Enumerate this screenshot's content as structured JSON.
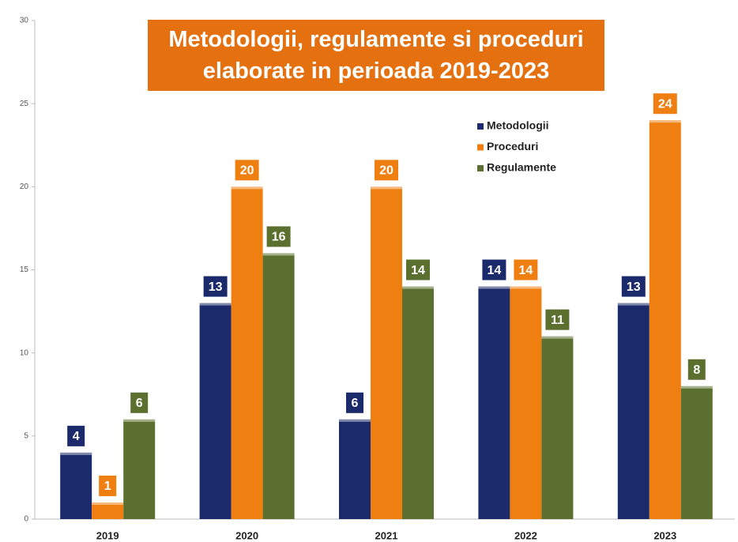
{
  "chart_data": {
    "type": "bar",
    "title": "Metodologii, regulamente si proceduri elaborate in perioada 2019-2023",
    "categories": [
      "2019",
      "2020",
      "2021",
      "2022",
      "2023"
    ],
    "series": [
      {
        "name": "Metodologii",
        "color": "#1b2a6b",
        "values": [
          4,
          13,
          6,
          14,
          13
        ]
      },
      {
        "name": "Proceduri",
        "color": "#f07f12",
        "values": [
          1,
          20,
          20,
          14,
          24
        ]
      },
      {
        "name": "Regulamente",
        "color": "#5b6f2f",
        "values": [
          6,
          16,
          14,
          11,
          8
        ]
      }
    ],
    "ylim": [
      0,
      30
    ],
    "yticks": [
      0,
      5,
      10,
      15,
      20,
      25,
      30
    ],
    "legend": "upper right"
  }
}
